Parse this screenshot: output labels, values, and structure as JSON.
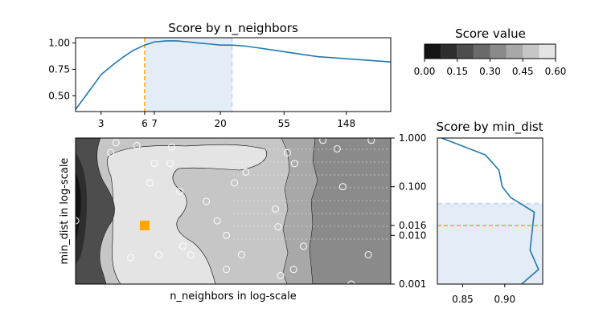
{
  "chart_data": [
    {
      "id": "top",
      "type": "line",
      "title": "Score by n_neighbors",
      "xscale": "log",
      "xlim": [
        2,
        300
      ],
      "ylim": [
        0.35,
        1.05
      ],
      "xticks": [
        3,
        6,
        7,
        20,
        55,
        148
      ],
      "xticklabels": [
        "3",
        "6",
        "7",
        "20",
        "55",
        "148"
      ],
      "yticks": [
        0.5,
        0.75,
        1.0
      ],
      "yticklabels": [
        "0.50",
        "0.75",
        "1.00"
      ],
      "series": [
        {
          "x": [
            2,
            2.5,
            3,
            3.6,
            4.3,
            5,
            6,
            7,
            8.5,
            10,
            12,
            14,
            17,
            20,
            24,
            30,
            38,
            48,
            60,
            75,
            95,
            120,
            150,
            190,
            240,
            300
          ],
          "y": [
            0.37,
            0.55,
            0.7,
            0.79,
            0.87,
            0.93,
            0.98,
            1.01,
            1.02,
            1.02,
            1.01,
            1.0,
            0.99,
            0.98,
            0.98,
            0.97,
            0.95,
            0.93,
            0.91,
            0.89,
            0.87,
            0.86,
            0.85,
            0.84,
            0.83,
            0.82
          ]
        }
      ],
      "best_x": 6,
      "range_x": [
        6,
        24
      ]
    },
    {
      "id": "colorbar",
      "type": "heatmap",
      "title": "Score value",
      "levels": [
        0.0,
        0.075,
        0.15,
        0.225,
        0.3,
        0.375,
        0.45,
        0.525,
        0.6
      ],
      "ticks": [
        0.0,
        0.15,
        0.3,
        0.45,
        0.6
      ],
      "ticklabels": [
        "0.00",
        "0.15",
        "0.30",
        "0.45",
        "0.60"
      ],
      "colors": [
        "#141414",
        "#2e2e2e",
        "#4d4d4d",
        "#6a6a6a",
        "#8a8a8a",
        "#a8a8a8",
        "#c6c6c6",
        "#e4e4e4"
      ]
    },
    {
      "id": "contour",
      "type": "heatmap",
      "xlabel": "n_neighbors in log-scale",
      "ylabel": "min_dist in log-scale",
      "xscale": "log",
      "yscale": "log",
      "xlim": [
        2,
        300
      ],
      "ylim": [
        0.001,
        1.0
      ],
      "best_point": [
        6,
        0.016
      ],
      "sample_points": [
        [
          2,
          0.02
        ],
        [
          3.5,
          0.5
        ],
        [
          3.8,
          0.8
        ],
        [
          4.8,
          0.0035
        ],
        [
          5.3,
          0.7
        ],
        [
          6.5,
          0.12
        ],
        [
          7.5,
          0.004
        ],
        [
          9.2,
          0.65
        ],
        [
          10.5,
          0.08
        ],
        [
          9.0,
          0.3
        ],
        [
          7.0,
          0.3
        ],
        [
          11,
          0.006
        ],
        [
          12.5,
          0.004
        ],
        [
          16,
          0.05
        ],
        [
          19,
          0.02
        ],
        [
          22,
          0.01
        ],
        [
          22,
          0.002
        ],
        [
          25,
          0.12
        ],
        [
          28,
          0.004
        ],
        [
          30,
          0.2
        ],
        [
          48,
          0.035
        ],
        [
          50,
          0.015
        ],
        [
          52,
          0.0015
        ],
        [
          58,
          0.5
        ],
        [
          64,
          0.002
        ],
        [
          65,
          0.3
        ],
        [
          75,
          0.006
        ],
        [
          102,
          0.9
        ],
        [
          128,
          0.6
        ],
        [
          140,
          0.1
        ],
        [
          160,
          0.001
        ],
        [
          220,
          0.9
        ],
        [
          210,
          0.004
        ]
      ]
    },
    {
      "id": "right",
      "type": "line",
      "title": "Score by min_dist",
      "yscale": "log",
      "ylim": [
        0.001,
        1.0
      ],
      "xlim": [
        0.82,
        0.945
      ],
      "xticks": [
        0.85,
        0.9
      ],
      "xticklabels": [
        "0.85",
        "0.90"
      ],
      "yticks": [
        1.0,
        0.1,
        0.016,
        0.01,
        0.001
      ],
      "yticklabels": [
        "1.000",
        "0.100",
        "0.016",
        "0.010",
        "0.001"
      ],
      "series": [
        {
          "x": [
            0.825,
            0.877,
            0.893,
            0.897,
            0.907,
            0.935,
            0.93,
            0.94,
            0.92
          ],
          "y": [
            1.0,
            0.45,
            0.22,
            0.1,
            0.06,
            0.03,
            0.005,
            0.002,
            0.001
          ]
        }
      ],
      "best_y": 0.016,
      "range_y": [
        0.001,
        0.045
      ]
    }
  ]
}
